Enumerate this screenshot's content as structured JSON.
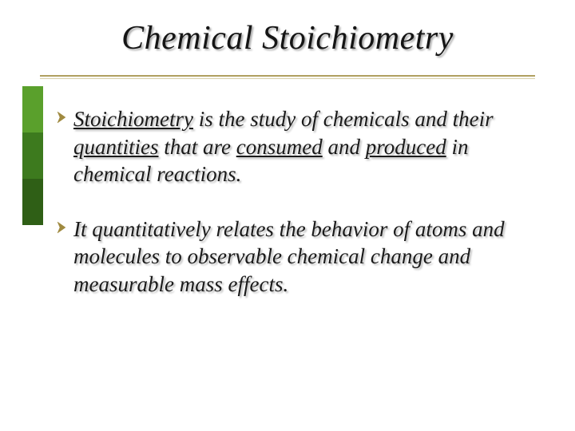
{
  "slide": {
    "title": "Chemical Stoichiometry",
    "title_fontsize": 42,
    "title_color": "#151515",
    "rule_color_top": "#b0a060",
    "rule_color_bottom": "#d8d0a8",
    "sidebar_colors": [
      "#5aa02c",
      "#3d7a1e",
      "#2f5f16"
    ],
    "sidebar_heights": [
      58,
      58,
      58
    ],
    "bullet_arrow_color": "#a08a40",
    "body_fontsize": 27,
    "body_line_height": 1.28,
    "body_color": "#1a1a1a",
    "bullets": [
      {
        "segments": [
          {
            "text": "Stoichiometry",
            "underline": true
          },
          {
            "text": " is the study of chemicals and their ",
            "underline": false
          },
          {
            "text": "quantities",
            "underline": true
          },
          {
            "text": " that are ",
            "underline": false
          },
          {
            "text": "consumed",
            "underline": true
          },
          {
            "text": " and ",
            "underline": false
          },
          {
            "text": "produced",
            "underline": true
          },
          {
            "text": " in chemical reactions.",
            "underline": false
          }
        ]
      },
      {
        "segments": [
          {
            "text": "It quantitatively relates the behavior of atoms and molecules to observable chemical change and measurable mass effects.",
            "underline": false
          }
        ]
      }
    ]
  }
}
